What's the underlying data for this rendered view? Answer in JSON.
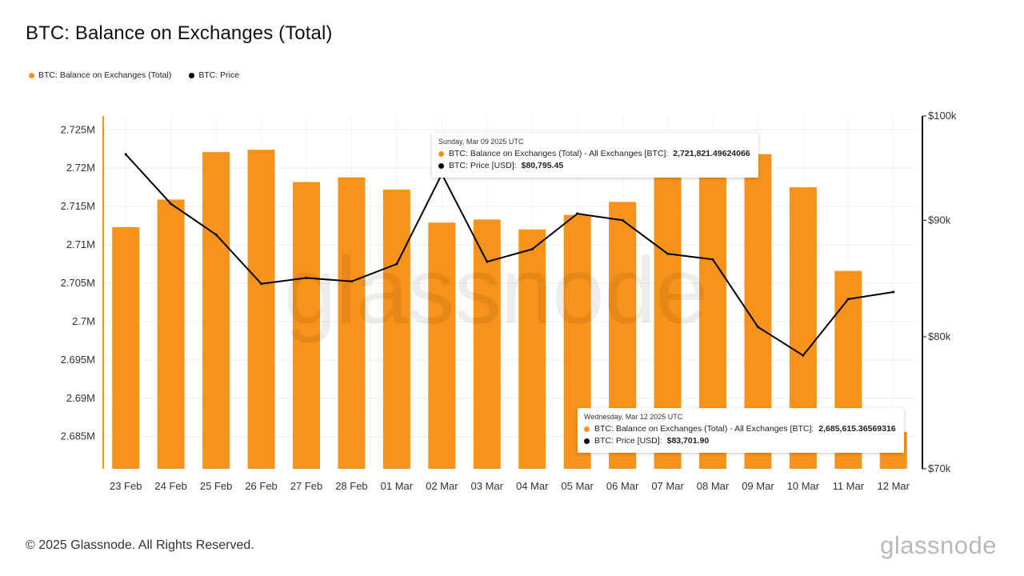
{
  "title": "BTC: Balance on Exchanges (Total)",
  "legend": [
    {
      "label": "BTC: Balance on Exchanges (Total)",
      "color": "#f7931a"
    },
    {
      "label": "BTC: Price",
      "color": "#000000"
    }
  ],
  "watermark": "glassnode",
  "footer": {
    "copyright": "© 2025 Glassnode. All Rights Reserved.",
    "logo": "glassnode"
  },
  "tooltips": [
    {
      "date": "Sunday, Mar 09 2025 UTC",
      "balance_label": "BTC: Balance on Exchanges (Total) - All Exchanges [BTC]:",
      "balance_value": "2,721,821.49624066",
      "price_label": "BTC: Price [USD]:",
      "price_value": "$80,795.45"
    },
    {
      "date": "Wednesday, Mar 12 2025 UTC",
      "balance_label": "BTC: Balance on Exchanges (Total) - All Exchanges [BTC]:",
      "balance_value": "2,685,615.36569316",
      "price_label": "BTC: Price [USD]:",
      "price_value": "$83,701.90"
    }
  ],
  "chart_data": {
    "type": "bar",
    "categories": [
      "23 Feb",
      "24 Feb",
      "25 Feb",
      "26 Feb",
      "27 Feb",
      "28 Feb",
      "01 Mar",
      "02 Mar",
      "03 Mar",
      "04 Mar",
      "05 Mar",
      "06 Mar",
      "07 Mar",
      "08 Mar",
      "09 Mar",
      "10 Mar",
      "11 Mar",
      "12 Mar"
    ],
    "series": [
      {
        "name": "BTC: Balance on Exchanges (Total)",
        "type": "bar",
        "axis": "left",
        "color": "#f7931a",
        "values": [
          2712300,
          2715900,
          2722100,
          2722400,
          2718200,
          2718800,
          2717200,
          2712900,
          2713300,
          2712000,
          2713900,
          2715600,
          2721600,
          2721700,
          2721821.49624066,
          2717500,
          2706600,
          2685615.36569316
        ]
      },
      {
        "name": "BTC: Price",
        "type": "line",
        "axis": "right",
        "color": "#000000",
        "values": [
          96200,
          91500,
          88700,
          84400,
          84900,
          84600,
          86100,
          94300,
          86300,
          87400,
          90600,
          90000,
          87000,
          86500,
          80795.45,
          78500,
          83100,
          83701.9
        ]
      }
    ],
    "y_left": {
      "ylim": [
        2680800,
        2726800
      ],
      "ticks": [
        2685000,
        2690000,
        2695000,
        2700000,
        2705000,
        2710000,
        2715000,
        2720000,
        2725000
      ],
      "tick_labels": [
        "2.685M",
        "2.69M",
        "2.695M",
        "2.7M",
        "2.705M",
        "2.71M",
        "2.715M",
        "2.72M",
        "2.725M"
      ]
    },
    "y_right": {
      "scale": "log",
      "ylim": [
        70000,
        100000
      ],
      "ticks": [
        70000,
        80000,
        90000,
        100000
      ],
      "tick_labels": [
        "$70k",
        "$80k",
        "$90k",
        "$100k"
      ]
    },
    "grid": true
  }
}
